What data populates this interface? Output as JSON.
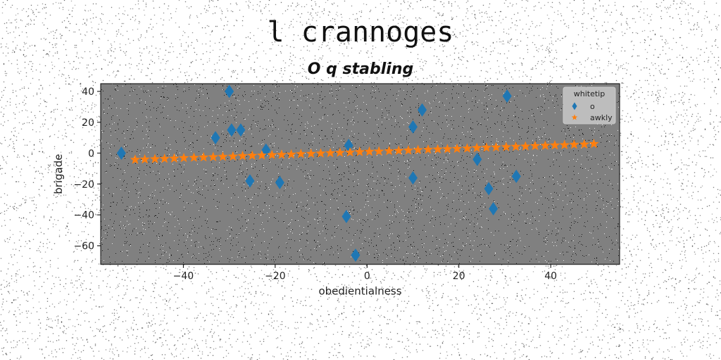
{
  "title": "l crannoges",
  "subtitle": "O q stabling",
  "colors": {
    "scatter": "#1f77b4",
    "line": "#ff7f0e",
    "plot_bg": "#808080"
  },
  "chart_data": {
    "type": "scatter",
    "title": "O q stabling",
    "xlabel": "obedientialness",
    "ylabel": "brigade",
    "xlim": [
      -58,
      55
    ],
    "ylim": [
      -72,
      45
    ],
    "xticks": [
      -40,
      -20,
      0,
      20,
      40
    ],
    "yticks": [
      -60,
      -40,
      -20,
      0,
      20,
      40
    ],
    "legend": {
      "title": "whitetip",
      "placement": "top-right"
    },
    "series": [
      {
        "name": "o",
        "marker": "diamond",
        "x": [
          -53.5,
          -33,
          -30,
          -29.5,
          -27.5,
          -25.5,
          -22,
          -19,
          -4.5,
          -4,
          -2.5,
          10,
          10,
          12,
          24,
          26.5,
          27.5,
          30.5,
          32.5
        ],
        "y": [
          0,
          10,
          40,
          15,
          15,
          -18,
          2,
          -19,
          -41,
          5,
          -66,
          -16,
          17,
          28,
          -4,
          -23,
          -36,
          37,
          -15
        ]
      },
      {
        "name": "awkly",
        "marker": "star",
        "x": [
          -50.5,
          -48.4,
          -46.2,
          -44.1,
          -42,
          -39.9,
          -37.7,
          -35.6,
          -33.5,
          -31.4,
          -29.2,
          -27.1,
          -25,
          -22.9,
          -20.7,
          -18.6,
          -16.5,
          -14.4,
          -12.2,
          -10.1,
          -8,
          -5.9,
          -3.7,
          -1.6,
          0.5,
          2.6,
          4.8,
          6.9,
          9,
          11.1,
          13.3,
          15.4,
          17.5,
          19.6,
          21.8,
          23.9,
          26,
          28.1,
          30.3,
          32.4,
          34.5,
          36.6,
          38.8,
          40.9,
          43,
          45.1,
          47.3,
          49.4
        ],
        "y": [
          -4.2,
          -4,
          -3.8,
          -3.6,
          -3.4,
          -3.1,
          -2.9,
          -2.7,
          -2.5,
          -2.3,
          -2.1,
          -1.8,
          -1.6,
          -1.4,
          -1.2,
          -1,
          -0.8,
          -0.5,
          -0.3,
          -0.1,
          0.1,
          0.3,
          0.5,
          0.8,
          1,
          1.2,
          1.4,
          1.6,
          1.8,
          2.1,
          2.3,
          2.5,
          2.7,
          2.9,
          3.1,
          3.4,
          3.6,
          3.8,
          4,
          4.2,
          4.4,
          4.7,
          4.9,
          5.1,
          5.3,
          5.5,
          5.7,
          6
        ]
      }
    ]
  }
}
